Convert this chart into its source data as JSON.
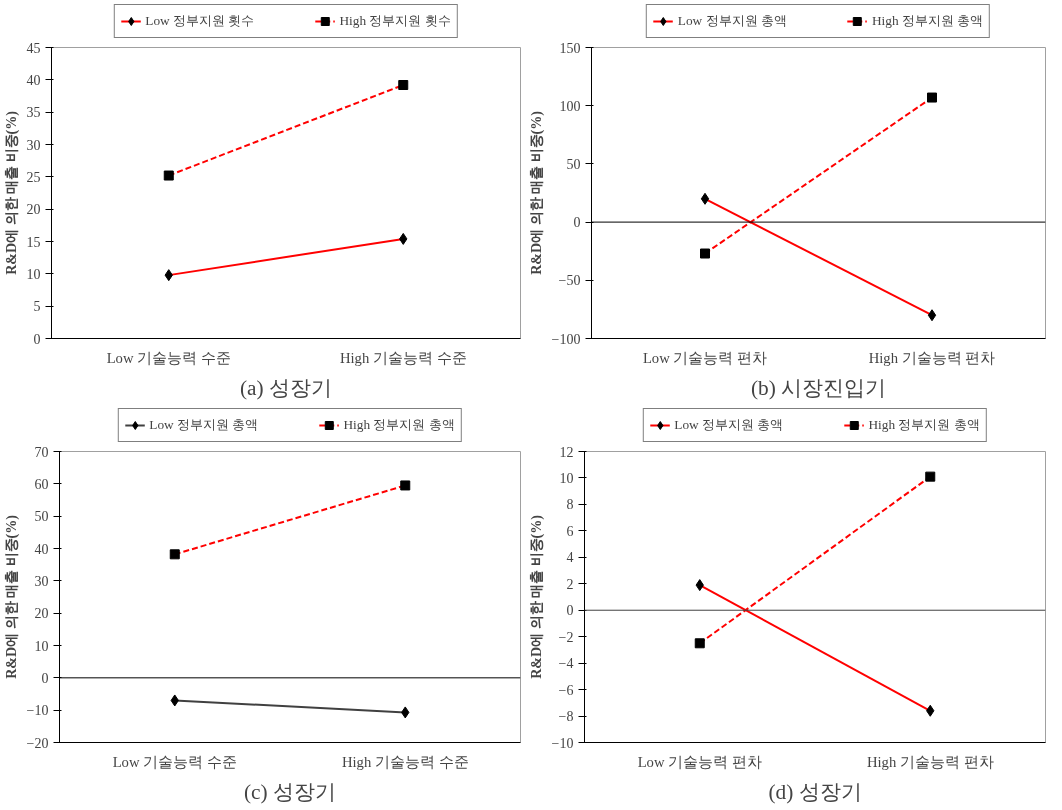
{
  "chart_data": [
    {
      "type": "line",
      "title": "(a) 성장기",
      "ylabel": "R&D에 의한 매출 비중(%)",
      "categories": [
        "Low 기술능력 수준",
        "High 기술능력 수준"
      ],
      "ylim": [
        0,
        45
      ],
      "yticks": [
        0,
        5,
        10,
        15,
        20,
        25,
        30,
        35,
        40,
        45
      ],
      "grid": false,
      "legend": "top",
      "series": [
        {
          "name": "Low 정부지원 횟수",
          "color": "#ff0000",
          "marker": "diamond",
          "line_style": "solid",
          "values": [
            9.8,
            15.4
          ]
        },
        {
          "name": "High 정부지원 횟수",
          "color": "#ff0000",
          "marker": "square",
          "line_style": "dashed",
          "values": [
            25.2,
            39.2
          ]
        }
      ]
    },
    {
      "type": "line",
      "title": "(b) 시장진입기",
      "ylabel": "R&D에 의한 매출 비중(%)",
      "categories": [
        "Low 기술능력 편차",
        "High 기술능력 편차"
      ],
      "ylim": [
        -100,
        150
      ],
      "yticks": [
        -100,
        -50,
        0,
        50,
        100,
        150
      ],
      "grid": false,
      "legend": "top",
      "ref_lines": [
        {
          "axis": "y",
          "value": 0,
          "color": "#000000"
        }
      ],
      "series": [
        {
          "name": "Low 정부지원 총액",
          "color": "#ff0000",
          "marker": "diamond",
          "line_style": "solid",
          "values": [
            20,
            -80
          ]
        },
        {
          "name": "High 정부지원 총액",
          "color": "#ff0000",
          "marker": "square",
          "line_style": "dashed",
          "values": [
            -27,
            107
          ]
        }
      ]
    },
    {
      "type": "line",
      "title": "(c) 성장기",
      "ylabel": "R&D에 의한 매출 비중(%)",
      "categories": [
        "Low 기술능력 수준",
        "High 기술능력 수준"
      ],
      "ylim": [
        -20,
        70
      ],
      "yticks": [
        -20,
        -10,
        0,
        10,
        20,
        30,
        40,
        50,
        60,
        70
      ],
      "grid": false,
      "legend": "top",
      "ref_lines": [
        {
          "axis": "y",
          "value": 0,
          "color": "#000000"
        }
      ],
      "series": [
        {
          "name": "Low 정부지원 총액",
          "color": "#404040",
          "marker": "diamond",
          "line_style": "solid",
          "values": [
            -7,
            -10.7
          ]
        },
        {
          "name": "High 정부지원 총액",
          "color": "#ff0000",
          "marker": "square",
          "line_style": "dashed",
          "values": [
            38.2,
            59.5
          ]
        }
      ]
    },
    {
      "type": "line",
      "title": "(d) 성장기",
      "ylabel": "R&D에 의한 매출 비중(%)",
      "categories": [
        "Low 기술능력 편차",
        "High 기술능력 편차"
      ],
      "ylim": [
        -10,
        12
      ],
      "yticks": [
        -10,
        -8,
        -6,
        -4,
        -2,
        0,
        2,
        4,
        6,
        8,
        10,
        12
      ],
      "grid": false,
      "legend": "top",
      "ref_lines": [
        {
          "axis": "y",
          "value": 0,
          "color": "#404040"
        }
      ],
      "series": [
        {
          "name": "Low 정부지원 총액",
          "color": "#ff0000",
          "marker": "diamond",
          "line_style": "solid",
          "values": [
            1.9,
            -7.6
          ]
        },
        {
          "name": "High 정부지원 총액",
          "color": "#ff0000",
          "marker": "square",
          "line_style": "dashed",
          "values": [
            -2.5,
            10.1
          ]
        }
      ]
    }
  ]
}
